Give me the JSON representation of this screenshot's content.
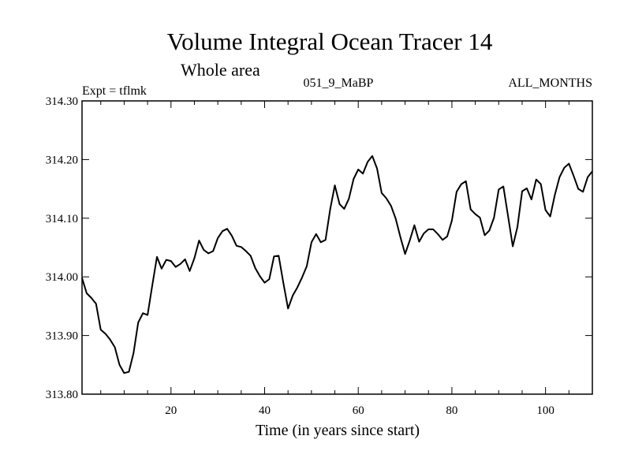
{
  "chart_data": {
    "type": "line",
    "title": "Volume Integral Ocean Tracer 14",
    "subtitle": "Whole area",
    "expt_label": "Expt = tflmk",
    "run_label": "051_9_MaBP",
    "months_label": "ALL_MONTHS",
    "xlabel": "Time (in years since start)",
    "ylabel": "",
    "xlim": [
      1,
      110
    ],
    "ylim": [
      313.8,
      314.3
    ],
    "x_ticks": [
      20,
      40,
      60,
      80,
      100
    ],
    "y_ticks": [
      313.8,
      313.9,
      314.0,
      314.1,
      314.2,
      314.3
    ],
    "y_tick_labels": [
      "313.80",
      "313.90",
      "314.00",
      "314.10",
      "314.20",
      "314.30"
    ],
    "grid": false,
    "series": [
      {
        "x": [
          1,
          2,
          3,
          4,
          5,
          6,
          7,
          8,
          9,
          10,
          11,
          12,
          13,
          14,
          15,
          16,
          17,
          18,
          19,
          20,
          21,
          22,
          23,
          24,
          25,
          26,
          27,
          28,
          29,
          30,
          31,
          32,
          33,
          34,
          35,
          36,
          37,
          38,
          39,
          40,
          41,
          42,
          43,
          44,
          45,
          46,
          47,
          48,
          49,
          50,
          51,
          52,
          53,
          54,
          55,
          56,
          57,
          58,
          59,
          60,
          61,
          62,
          63,
          64,
          65,
          66,
          67,
          68,
          69,
          70,
          71,
          72,
          73,
          74,
          75,
          76,
          77,
          78,
          79,
          80,
          81,
          82,
          83,
          84,
          85,
          86,
          87,
          88,
          89,
          90,
          91,
          92,
          93,
          94,
          95,
          96,
          97,
          98,
          99,
          100,
          101,
          102,
          103,
          104,
          105,
          106,
          107,
          108,
          109,
          110
        ],
        "values": [
          313.998,
          313.972,
          313.964,
          313.954,
          313.91,
          313.903,
          313.893,
          313.88,
          313.85,
          313.836,
          313.838,
          313.87,
          313.922,
          313.938,
          313.935,
          313.985,
          314.034,
          314.014,
          314.029,
          314.027,
          314.017,
          314.022,
          314.03,
          314.01,
          314.032,
          314.062,
          314.046,
          314.04,
          314.044,
          314.066,
          314.078,
          314.082,
          314.07,
          314.053,
          314.051,
          314.044,
          314.036,
          314.015,
          314.001,
          313.99,
          313.996,
          314.035,
          314.036,
          313.99,
          313.946,
          313.968,
          313.982,
          313.999,
          314.018,
          314.059,
          314.073,
          314.059,
          314.063,
          314.115,
          314.156,
          314.124,
          314.116,
          314.133,
          314.167,
          314.183,
          314.176,
          314.196,
          314.206,
          314.185,
          314.143,
          314.134,
          314.121,
          314.099,
          314.068,
          314.039,
          314.062,
          314.088,
          314.06,
          314.074,
          314.081,
          314.081,
          314.073,
          314.063,
          314.069,
          314.096,
          314.145,
          314.158,
          314.163,
          314.115,
          314.107,
          314.101,
          314.071,
          314.079,
          314.101,
          314.149,
          314.154,
          314.103,
          314.052,
          314.085,
          314.146,
          314.151,
          314.132,
          314.166,
          314.158,
          314.114,
          314.103,
          314.14,
          314.17,
          314.186,
          314.193,
          314.172,
          314.15,
          314.145,
          314.17,
          314.18
        ]
      }
    ]
  }
}
